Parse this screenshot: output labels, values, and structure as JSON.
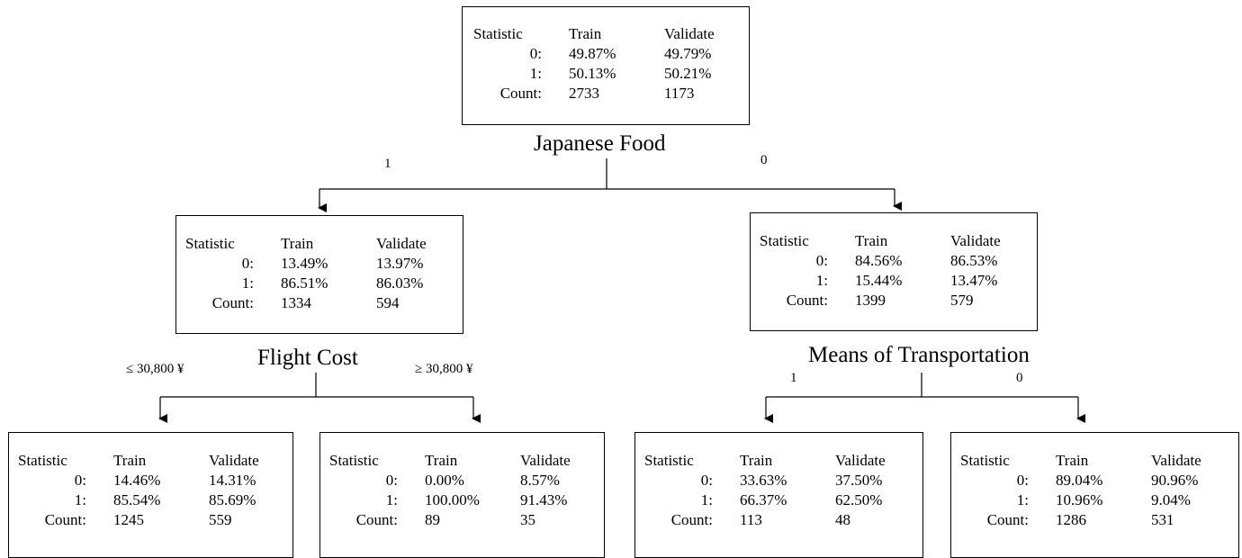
{
  "headers": {
    "statistic": "Statistic",
    "train": "Train",
    "validate": "Validate"
  },
  "row_labels": {
    "zero": "0:",
    "one": "1:",
    "count": "Count:"
  },
  "nodes": {
    "root": {
      "zero": [
        "49.87%",
        "49.79%"
      ],
      "one": [
        "50.13%",
        "50.21%"
      ],
      "count": [
        "2733",
        "1173"
      ]
    },
    "left": {
      "zero": [
        "13.49%",
        "13.97%"
      ],
      "one": [
        "86.51%",
        "86.03%"
      ],
      "count": [
        "1334",
        "594"
      ]
    },
    "right": {
      "zero": [
        "84.56%",
        "86.53%"
      ],
      "one": [
        "15.44%",
        "13.47%"
      ],
      "count": [
        "1399",
        "579"
      ]
    },
    "ll": {
      "zero": [
        "14.46%",
        "14.31%"
      ],
      "one": [
        "85.54%",
        "85.69%"
      ],
      "count": [
        "1245",
        "559"
      ]
    },
    "lr": {
      "zero": [
        "0.00%",
        "8.57%"
      ],
      "one": [
        "100.00%",
        "91.43%"
      ],
      "count": [
        "89",
        "35"
      ]
    },
    "rl": {
      "zero": [
        "33.63%",
        "37.50%"
      ],
      "one": [
        "66.37%",
        "62.50%"
      ],
      "count": [
        "113",
        "48"
      ]
    },
    "rr": {
      "zero": [
        "89.04%",
        "90.96%"
      ],
      "one": [
        "10.96%",
        "9.04%"
      ],
      "count": [
        "1286",
        "531"
      ]
    }
  },
  "splits": {
    "root": {
      "variable": "Japanese Food",
      "left_branch": "1",
      "right_branch": "0"
    },
    "left": {
      "variable": "Flight Cost",
      "left_branch": "≤ 30,800 ¥",
      "right_branch": "≥ 30,800 ¥"
    },
    "right": {
      "variable": "Means of Transportation",
      "left_branch": "1",
      "right_branch": "0"
    }
  }
}
